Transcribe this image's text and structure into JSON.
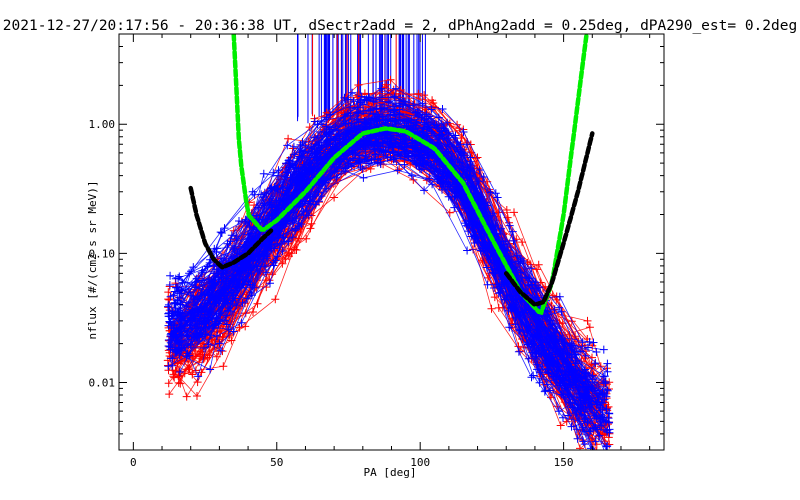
{
  "chart_data": {
    "type": "line",
    "title": "2021-12-27/20:17:56 - 20:36:38 UT, dSectr2add = 2, dPhAng2add = 0.25deg, dPA290_est=   0.2deg",
    "xlabel": "PA [deg]",
    "ylabel": "nflux [#/(cm2 s sr MeV)]",
    "xlim": [
      -5,
      185
    ],
    "ylim": [
      0.003,
      5
    ],
    "yscale": "log",
    "x_ticks": [
      0,
      50,
      100,
      150
    ],
    "x_tick_labels": [
      "0",
      "50",
      "100",
      "150"
    ],
    "y_ticks": [
      0.01,
      0.1,
      1.0
    ],
    "y_tick_labels": [
      "0.01",
      "0.10",
      "1.00"
    ],
    "grid": false,
    "series": [
      {
        "color": "#ff0000",
        "marker": "+",
        "style": "many overlapping line traces",
        "profile_x": [
          15,
          25,
          35,
          45,
          55,
          65,
          75,
          85,
          90,
          95,
          105,
          115,
          125,
          135,
          145,
          155,
          165
        ],
        "profile_y": [
          0.02,
          0.03,
          0.06,
          0.12,
          0.25,
          0.5,
          0.85,
          0.95,
          0.95,
          0.9,
          0.7,
          0.4,
          0.12,
          0.05,
          0.02,
          0.01,
          0.006
        ]
      },
      {
        "color": "#0000ff",
        "marker": "+",
        "style": "many overlapping line traces",
        "profile_x": [
          15,
          25,
          35,
          45,
          55,
          65,
          75,
          85,
          90,
          95,
          105,
          115,
          125,
          135,
          145,
          155,
          165
        ],
        "profile_y": [
          0.03,
          0.04,
          0.07,
          0.14,
          0.3,
          0.55,
          0.85,
          0.95,
          0.95,
          0.9,
          0.7,
          0.4,
          0.13,
          0.05,
          0.02,
          0.01,
          0.006
        ]
      },
      {
        "color": "#00ee00",
        "style": "thick dashed fit",
        "x": [
          35,
          37,
          40,
          45,
          50,
          60,
          70,
          80,
          88,
          95,
          105,
          115,
          125,
          135,
          142,
          146,
          150,
          155,
          158
        ],
        "y": [
          5.0,
          0.6,
          0.2,
          0.15,
          0.18,
          0.3,
          0.55,
          0.85,
          0.93,
          0.88,
          0.65,
          0.35,
          0.13,
          0.05,
          0.034,
          0.06,
          0.2,
          1.5,
          5.0
        ]
      },
      {
        "color": "#000000",
        "style": "thick dashed fit",
        "x": [
          20,
          22,
          25,
          28,
          31,
          35,
          40,
          45,
          48
        ],
        "y": [
          0.32,
          0.2,
          0.12,
          0.09,
          0.078,
          0.085,
          0.1,
          0.13,
          0.15
        ]
      },
      {
        "color": "#000000",
        "style": "thick dashed fit",
        "x": [
          130,
          135,
          140,
          143,
          146,
          150,
          155,
          160
        ],
        "y": [
          0.07,
          0.05,
          0.04,
          0.042,
          0.06,
          0.12,
          0.3,
          0.85
        ]
      }
    ]
  }
}
